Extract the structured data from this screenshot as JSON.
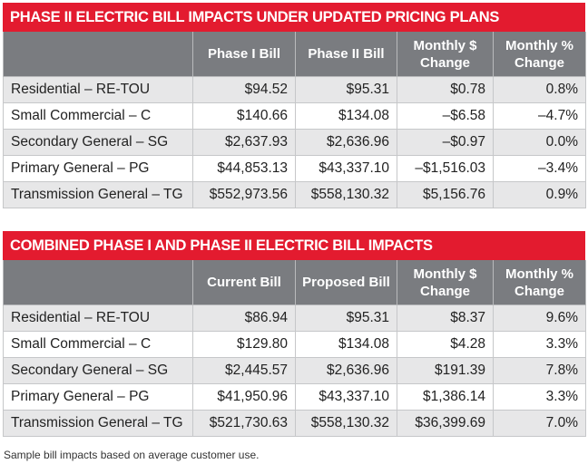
{
  "table1": {
    "title": "PHASE II ELECTRIC BILL IMPACTS UNDER UPDATED PRICING PLANS",
    "headers": [
      "",
      "Phase I Bill",
      "Phase II Bill",
      "Monthly $ Change",
      "Monthly % Change"
    ],
    "rows": [
      [
        "Residential – RE-TOU",
        "$94.52",
        "$95.31",
        "$0.78",
        "0.8%"
      ],
      [
        "Small Commercial – C",
        "$140.66",
        "$134.08",
        "–$6.58",
        "–4.7%"
      ],
      [
        "Secondary General – SG",
        "$2,637.93",
        "$2,636.96",
        "–$0.97",
        "0.0%"
      ],
      [
        "Primary General – PG",
        "$44,853.13",
        "$43,337.10",
        "–$1,516.03",
        "–3.4%"
      ],
      [
        "Transmission General – TG",
        "$552,973.56",
        "$558,130.32",
        "$5,156.76",
        "0.9%"
      ]
    ]
  },
  "table2": {
    "title": "COMBINED PHASE I AND PHASE II ELECTRIC BILL IMPACTS",
    "headers": [
      "",
      "Current Bill",
      "Proposed Bill",
      "Monthly $ Change",
      "Monthly % Change"
    ],
    "rows": [
      [
        "Residential – RE-TOU",
        "$86.94",
        "$95.31",
        "$8.37",
        "9.6%"
      ],
      [
        "Small Commercial – C",
        "$129.80",
        "$134.08",
        "$4.28",
        "3.3%"
      ],
      [
        "Secondary General – SG",
        "$2,445.57",
        "$2,636.96",
        "$191.39",
        "7.8%"
      ],
      [
        "Primary General – PG",
        "$41,950.96",
        "$43,337.10",
        "$1,386.14",
        "3.3%"
      ],
      [
        "Transmission General – TG",
        "$521,730.63",
        "$558,130.32",
        "$36,399.69",
        "7.0%"
      ]
    ]
  },
  "footnote": "Sample bill impacts based on average customer use.",
  "colors": {
    "title_bar": "#e31b2f",
    "header": "#7a7c80",
    "row_shaded": "#e7e7e8"
  }
}
